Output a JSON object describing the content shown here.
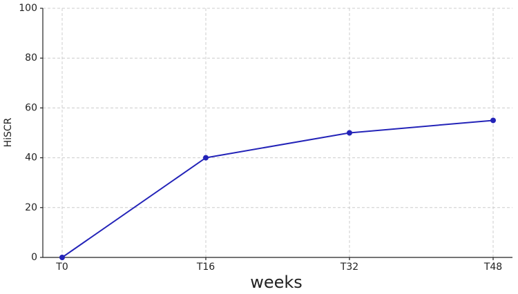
{
  "chart_data": {
    "type": "line",
    "x_label": "weeks",
    "y_label": "HiSCR",
    "categories": [
      "T0",
      "T16",
      "T32",
      "T48"
    ],
    "series": [
      {
        "name": "HiSCR",
        "color": "#2323b8",
        "values": [
          0,
          40,
          50,
          55
        ]
      }
    ],
    "ylim": [
      0,
      100
    ],
    "yticks": [
      0,
      20,
      40,
      60,
      80,
      100
    ],
    "grid": true
  }
}
